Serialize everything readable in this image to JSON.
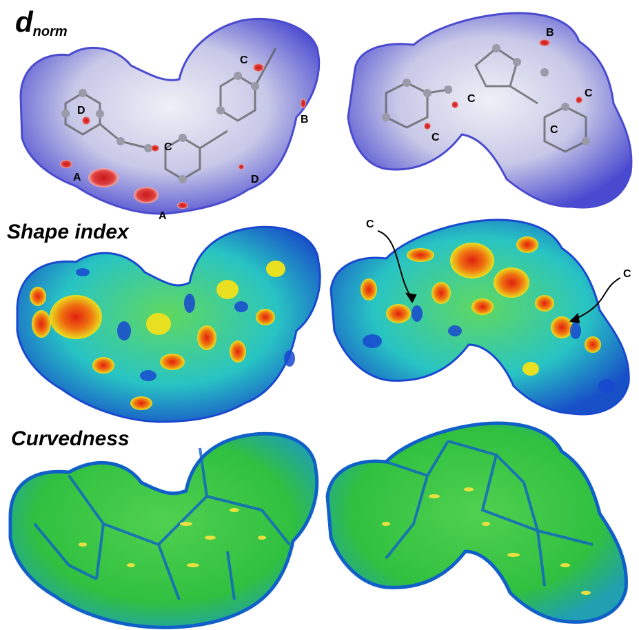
{
  "titles": {
    "dnorm_main": "d",
    "dnorm_sub": "norm",
    "shape_index": "Shape index",
    "curvedness": "Curvedness"
  },
  "labels": {
    "a": "A",
    "b": "B",
    "c": "C",
    "d": "D"
  },
  "colors": {
    "dnorm_blue": "#5a5ad8",
    "dnorm_white": "#e6e6f2",
    "dnorm_red": "#d42020",
    "shape_cyan": "#20c8c8",
    "shape_blue": "#1848d0",
    "shape_green": "#40c040",
    "shape_yellow": "#e8e020",
    "shape_orange": "#f07010",
    "shape_red": "#e02010",
    "curv_green": "#30c840",
    "curv_blue": "#1060c8",
    "curv_yellow": "#e8e040",
    "curv_red": "#d03010"
  }
}
